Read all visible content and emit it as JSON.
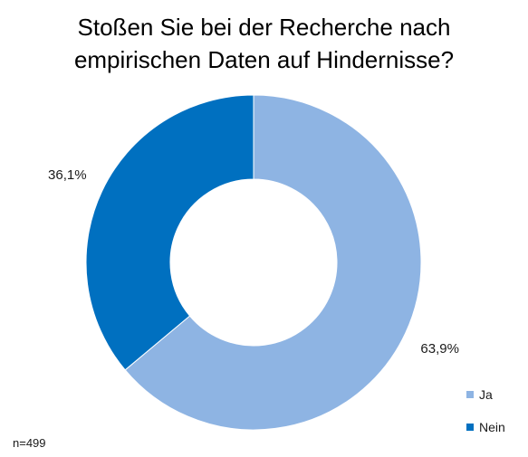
{
  "chart_data": {
    "type": "pie",
    "donut": true,
    "title_lines": [
      "Stoßen Sie bei der Recherche nach",
      "empirischen Daten auf Hindernisse?"
    ],
    "slices": [
      {
        "category": "Ja",
        "value": 63.9,
        "label": "63,9%",
        "color": "#8EB4E3"
      },
      {
        "category": "Nein",
        "value": 36.1,
        "label": "36,1%",
        "color": "#0070C0"
      }
    ],
    "legend": {
      "position": "bottom-right",
      "entries": [
        "Ja",
        "Nein"
      ]
    },
    "note": "n=499"
  }
}
